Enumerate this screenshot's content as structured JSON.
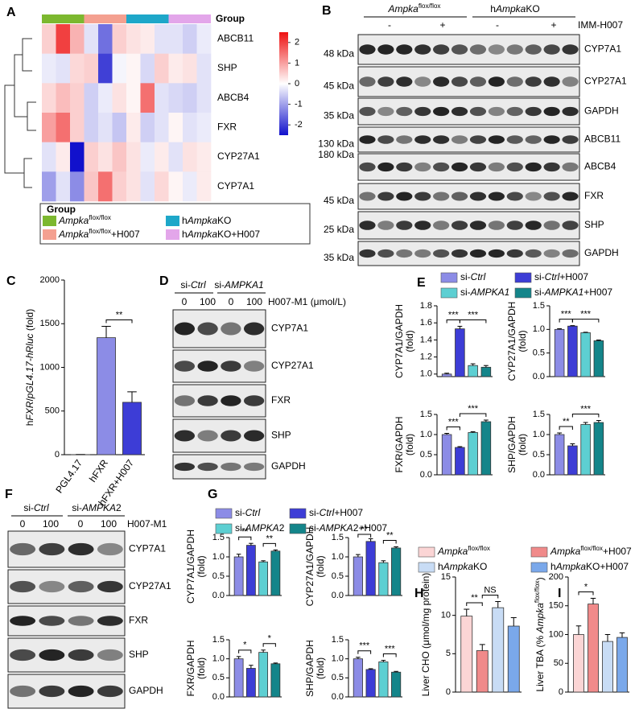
{
  "panel_labels": [
    "A",
    "B",
    "C",
    "D",
    "E",
    "F",
    "G",
    "H",
    "I"
  ],
  "heatmap": {
    "group_title": "Group",
    "rows": [
      "ABCB11",
      "SHP",
      "ABCB4",
      "FXR",
      "CYP27A1",
      "CYP7A1"
    ],
    "values": [
      [
        0.5,
        2,
        0.8,
        -0.3,
        -1.5,
        0.5,
        0.3,
        0.2,
        -0.3,
        -0.3,
        -0.5,
        -0.2
      ],
      [
        -0.2,
        -0.3,
        0.4,
        0.5,
        -2,
        -0.1,
        0.1,
        -0.4,
        0.5,
        0.2,
        0.3,
        -0.3
      ],
      [
        0.4,
        0.7,
        0.5,
        -0.5,
        -0.2,
        0.3,
        0.1,
        1.5,
        -0.3,
        -0.4,
        -0.5,
        -0.3
      ],
      [
        1,
        1.5,
        0.5,
        -0.5,
        -0.3,
        -0.6,
        0.2,
        -0.5,
        -0.3,
        0.1,
        -0.3,
        -0.2
      ],
      [
        -0.3,
        0.2,
        -2.5,
        0.5,
        0.3,
        0.6,
        0.3,
        -0.2,
        0.2,
        -0.3,
        0.3,
        0.2
      ],
      [
        -1,
        -0.3,
        -1.2,
        0.6,
        1.5,
        0.5,
        0.3,
        -0.3,
        0.4,
        0.1,
        -0.2,
        0.2
      ]
    ],
    "colorbar_lim": [
      -2.5,
      2.5
    ],
    "colorbar_ticks": [
      2,
      1,
      0,
      -1,
      -2
    ],
    "legend_title": "Group",
    "groups": [
      {
        "name": [
          {
            "t": "Ampka",
            "i": true
          },
          {
            "t": "flox/flox",
            "sup": true
          }
        ],
        "color": "#7cb82f"
      },
      {
        "name": [
          {
            "t": "Ampka",
            "i": true
          },
          {
            "t": "flox/flox",
            "sup": true
          },
          {
            "t": "+H007"
          }
        ],
        "color": "#f4a090"
      },
      {
        "name": [
          {
            "t": "h"
          },
          {
            "t": "Ampka",
            "i": true
          },
          {
            "t": "KO"
          }
        ],
        "color": "#1ea7c9"
      },
      {
        "name": [
          {
            "t": "h"
          },
          {
            "t": "Ampka",
            "i": true
          },
          {
            "t": "KO+H007"
          }
        ],
        "color": "#e3a6ea"
      }
    ]
  },
  "blot_B": {
    "groups": [
      [
        {
          "t": "Ampka",
          "i": true
        },
        {
          "t": "flox/flox",
          "sup": true
        }
      ],
      [
        {
          "t": "h"
        },
        {
          "t": "Ampka",
          "i": true
        },
        {
          "t": "KO"
        }
      ]
    ],
    "signs": [
      "-",
      "+",
      "-",
      "+"
    ],
    "treatment": "IMM-H007",
    "rows": [
      {
        "protein": "CYP7A1",
        "marker": "48 kDa"
      },
      {
        "protein": "CYP27A1",
        "marker": "45 kDa"
      },
      {
        "protein": "GAPDH",
        "marker": "35 kDa"
      },
      {
        "protein": "ABCB11",
        "marker": "130 kDa"
      },
      {
        "protein": "ABCB4",
        "marker": "180 kDa"
      },
      {
        "protein": "FXR",
        "marker": "45 kDa"
      },
      {
        "protein": "SHP",
        "marker": "25 kDa"
      },
      {
        "protein": "GAPDH",
        "marker": "35 kDa"
      }
    ]
  },
  "blot_D": {
    "groups": [
      [
        {
          "t": "si-"
        },
        {
          "t": "Ctrl",
          "i": true
        }
      ],
      [
        {
          "t": "si-"
        },
        {
          "t": "AMPKA1",
          "i": true
        }
      ]
    ],
    "doses": [
      0,
      100,
      0,
      100
    ],
    "treatment": "H007-M1 (μmol/L)",
    "rows": [
      "CYP7A1",
      "CYP27A1",
      "FXR",
      "SHP",
      "GAPDH"
    ]
  },
  "blot_F": {
    "groups": [
      [
        {
          "t": "si-"
        },
        {
          "t": "Ctrl",
          "i": true
        }
      ],
      [
        {
          "t": "si-"
        },
        {
          "t": "AMPKA",
          "i": true
        },
        {
          "t": "2"
        }
      ]
    ],
    "doses": [
      0,
      100,
      0,
      100
    ],
    "treatment": "H007-M1",
    "rows": [
      "CYP7A1",
      "CYP27A1",
      "FXR",
      "SHP",
      "GAPDH"
    ]
  },
  "legends": {
    "E": [
      {
        "name": [
          {
            "t": "si-"
          },
          {
            "t": "Ctrl",
            "i": true
          }
        ],
        "color": "#8c8ce6"
      },
      {
        "name": [
          {
            "t": "si-"
          },
          {
            "t": "Ctrl",
            "i": true
          },
          {
            "t": "+H007"
          }
        ],
        "color": "#3d3dd6"
      },
      {
        "name": [
          {
            "t": "si-"
          },
          {
            "t": "AMPKA1",
            "i": true
          }
        ],
        "color": "#5dcfd2"
      },
      {
        "name": [
          {
            "t": "si-"
          },
          {
            "t": "AMPKA1",
            "i": true
          },
          {
            "t": "+H007"
          }
        ],
        "color": "#14858a"
      }
    ],
    "G": [
      {
        "name": [
          {
            "t": "si-"
          },
          {
            "t": "Ctrl",
            "i": true
          }
        ],
        "color": "#8c8ce6"
      },
      {
        "name": [
          {
            "t": "si-"
          },
          {
            "t": "Ctrl",
            "i": true
          },
          {
            "t": "+H007"
          }
        ],
        "color": "#3d3dd6"
      },
      {
        "name": [
          {
            "t": "si-"
          },
          {
            "t": "AMPKA",
            "i": true
          },
          {
            "t": "2"
          }
        ],
        "color": "#5dcfd2"
      },
      {
        "name": [
          {
            "t": "si-"
          },
          {
            "t": "AMPKA",
            "i": true
          },
          {
            "t": "2+H007"
          }
        ],
        "color": "#14858a"
      }
    ],
    "HI": [
      {
        "name": [
          {
            "t": "Ampka",
            "i": true
          },
          {
            "t": "flox/flox",
            "sup": true
          }
        ],
        "color": "#fbd5d5"
      },
      {
        "name": [
          {
            "t": "Ampka",
            "i": true
          },
          {
            "t": "flox/flox",
            "sup": true
          },
          {
            "t": "+H007"
          }
        ],
        "color": "#f08a8a"
      },
      {
        "name": [
          {
            "t": "h"
          },
          {
            "t": "Ampka",
            "i": true
          },
          {
            "t": "KO"
          }
        ],
        "color": "#c8dcf5"
      },
      {
        "name": [
          {
            "t": "h"
          },
          {
            "t": "Ampka",
            "i": true
          },
          {
            "t": "KO+H007"
          }
        ],
        "color": "#7aa8ea"
      }
    ]
  },
  "chart_data": [
    {
      "type": "bar",
      "y_label": [
        [
          {
            "t": "h"
          },
          {
            "t": "FXR",
            "i": true
          },
          {
            "t": "/"
          },
          {
            "t": "pGL4.17-hRluc",
            "i": true
          },
          {
            "t": " (fold)"
          }
        ]
      ],
      "categories": [
        "PGL4.17",
        "hFXR",
        "hFXR+H007"
      ],
      "values": [
        1,
        1340,
        600
      ],
      "errors": [
        1,
        130,
        120
      ],
      "colors": [
        "#ffffff",
        "#8c8ce6",
        "#3d3dd6"
      ],
      "ylim": [
        0,
        2000
      ],
      "yticks": [
        0,
        500,
        1000,
        1500,
        2000
      ],
      "significance": [
        {
          "text": "**",
          "from": 1,
          "to": 2
        }
      ]
    },
    {
      "type": "bar",
      "y_label": [
        "CYP7A1/GAPDH",
        "(fold)"
      ],
      "values": [
        1.0,
        1.53,
        1.1,
        1.08
      ],
      "errors": [
        0.01,
        0.03,
        0.02,
        0.02
      ],
      "colors": [
        "#8c8ce6",
        "#3d3dd6",
        "#5dcfd2",
        "#14858a"
      ],
      "ylim": [
        0.97,
        1.8
      ],
      "yticks": [
        {
          "value": 1,
          "label": "1.0"
        },
        1.2,
        1.4,
        1.6,
        1.8
      ],
      "significance": [
        {
          "text": "***",
          "from": 0,
          "to": 1
        },
        {
          "text": "***",
          "from": 1,
          "to": 3
        }
      ]
    },
    {
      "type": "bar",
      "y_label": [
        "CYP27A1/GAPDH",
        "(fold)"
      ],
      "values": [
        1.0,
        1.07,
        0.93,
        0.76
      ],
      "errors": [
        0.015,
        0.01,
        0.01,
        0.015
      ],
      "colors": [
        "#8c8ce6",
        "#3d3dd6",
        "#5dcfd2",
        "#14858a"
      ],
      "ylim": [
        0,
        1.5
      ],
      "yticks": [
        {
          "value": 0,
          "label": "0.0"
        },
        0.5,
        {
          "value": 1,
          "label": "1.0"
        },
        1.5
      ],
      "significance": [
        {
          "text": "***",
          "from": 0,
          "to": 1
        },
        {
          "text": "***",
          "from": 1,
          "to": 3
        }
      ]
    },
    {
      "type": "bar",
      "y_label": [
        "FXR/GAPDH",
        "(fold)"
      ],
      "values": [
        1.0,
        0.68,
        1.05,
        1.32
      ],
      "errors": [
        0.03,
        0.02,
        0.02,
        0.04
      ],
      "colors": [
        "#8c8ce6",
        "#3d3dd6",
        "#5dcfd2",
        "#14858a"
      ],
      "ylim": [
        0,
        1.5
      ],
      "yticks": [
        {
          "value": 0,
          "label": "0.0"
        },
        0.5,
        {
          "value": 1,
          "label": "1.0"
        },
        1.5
      ],
      "significance": [
        {
          "text": "***",
          "from": 0,
          "to": 1
        },
        {
          "text": "***",
          "from": 1,
          "to": 3
        }
      ]
    },
    {
      "type": "bar",
      "y_label": [
        "SHP/GAPDH",
        "(fold)"
      ],
      "values": [
        1.0,
        0.72,
        1.25,
        1.3
      ],
      "errors": [
        0.04,
        0.05,
        0.05,
        0.05
      ],
      "colors": [
        "#8c8ce6",
        "#3d3dd6",
        "#5dcfd2",
        "#14858a"
      ],
      "ylim": [
        0,
        1.5
      ],
      "yticks": [
        {
          "value": 0,
          "label": "0.0"
        },
        0.5,
        {
          "value": 1,
          "label": "1.0"
        },
        1.5
      ],
      "significance": [
        {
          "text": "**",
          "from": 0,
          "to": 1
        },
        {
          "text": "***",
          "from": 1,
          "to": 3
        }
      ]
    },
    {
      "type": "bar",
      "y_label": [
        "CYP7A1/GAPDH",
        "(fold)"
      ],
      "values": [
        1.0,
        1.3,
        0.87,
        1.15
      ],
      "errors": [
        0.07,
        0.05,
        0.03,
        0.03
      ],
      "colors": [
        "#8c8ce6",
        "#3d3dd6",
        "#5dcfd2",
        "#14858a"
      ],
      "ylim": [
        0,
        1.5
      ],
      "yticks": [
        {
          "value": 0,
          "label": "0.0"
        },
        0.5,
        {
          "value": 1,
          "label": "1.0"
        },
        1.5
      ],
      "significance": [
        {
          "text": "**",
          "from": 0,
          "to": 1
        },
        {
          "text": "**",
          "from": 2,
          "to": 3
        }
      ]
    },
    {
      "type": "bar",
      "y_label": [
        "CYP27A1/GAPDH",
        "(fold)"
      ],
      "values": [
        1.0,
        1.4,
        0.85,
        1.23
      ],
      "errors": [
        0.06,
        0.07,
        0.05,
        0.03
      ],
      "colors": [
        "#8c8ce6",
        "#3d3dd6",
        "#5dcfd2",
        "#14858a"
      ],
      "ylim": [
        0,
        1.5
      ],
      "yticks": [
        {
          "value": 0,
          "label": "0.0"
        },
        0.5,
        {
          "value": 1,
          "label": "1.0"
        },
        1.5
      ],
      "significance": [
        {
          "text": "**",
          "from": 0,
          "to": 1
        },
        {
          "text": "**",
          "from": 2,
          "to": 3
        }
      ]
    },
    {
      "type": "bar",
      "y_label": [
        "FXR/GAPDH",
        "(fold)"
      ],
      "values": [
        1.0,
        0.75,
        1.17,
        0.87
      ],
      "errors": [
        0.06,
        0.08,
        0.06,
        0.02
      ],
      "colors": [
        "#8c8ce6",
        "#3d3dd6",
        "#5dcfd2",
        "#14858a"
      ],
      "ylim": [
        0,
        1.5
      ],
      "yticks": [
        {
          "value": 0,
          "label": "0.0"
        },
        0.5,
        {
          "value": 1,
          "label": "1.0"
        },
        1.5
      ],
      "significance": [
        {
          "text": "*",
          "from": 0,
          "to": 1
        },
        {
          "text": "*",
          "from": 2,
          "to": 3
        }
      ]
    },
    {
      "type": "bar",
      "y_label": [
        "SHP/GAPDH",
        "(fold)"
      ],
      "values": [
        1.0,
        0.72,
        0.92,
        0.65
      ],
      "errors": [
        0.04,
        0.02,
        0.04,
        0.02
      ],
      "colors": [
        "#8c8ce6",
        "#3d3dd6",
        "#5dcfd2",
        "#14858a"
      ],
      "ylim": [
        0,
        1.5
      ],
      "yticks": [
        {
          "value": 0,
          "label": "0.0"
        },
        0.5,
        {
          "value": 1,
          "label": "1.0"
        },
        1.5
      ],
      "significance": [
        {
          "text": "***",
          "from": 0,
          "to": 1
        },
        {
          "text": "***",
          "from": 2,
          "to": 3
        }
      ]
    },
    {
      "type": "bar",
      "y_label": [
        "Liver CHO (μmol/mg protein)"
      ],
      "values": [
        9.9,
        5.4,
        11,
        8.6
      ],
      "errors": [
        0.9,
        0.8,
        0.8,
        1.1
      ],
      "colors": [
        "#fbd5d5",
        "#f08a8a",
        "#c8dcf5",
        "#7aa8ea"
      ],
      "ylim": [
        0,
        15
      ],
      "yticks": [
        0,
        5,
        10,
        15
      ],
      "significance": [
        {
          "text": "**",
          "from": 0,
          "to": 1
        },
        {
          "text": "NS",
          "from": 1,
          "to": 2
        }
      ]
    },
    {
      "type": "bar",
      "y_label": [
        [
          {
            "t": "Liver TBA (% "
          },
          {
            "t": "Ampka",
            "i": true
          },
          {
            "t": "flox/flox",
            "sup": true
          },
          {
            "t": ")"
          }
        ]
      ],
      "values": [
        100,
        153,
        88,
        95
      ],
      "errors": [
        15,
        10,
        12,
        8
      ],
      "colors": [
        "#fbd5d5",
        "#f08a8a",
        "#c8dcf5",
        "#7aa8ea"
      ],
      "ylim": [
        0,
        200
      ],
      "yticks": [
        0,
        50,
        100,
        150,
        200
      ],
      "significance": [
        {
          "text": "*",
          "from": 0,
          "to": 1
        }
      ]
    }
  ]
}
